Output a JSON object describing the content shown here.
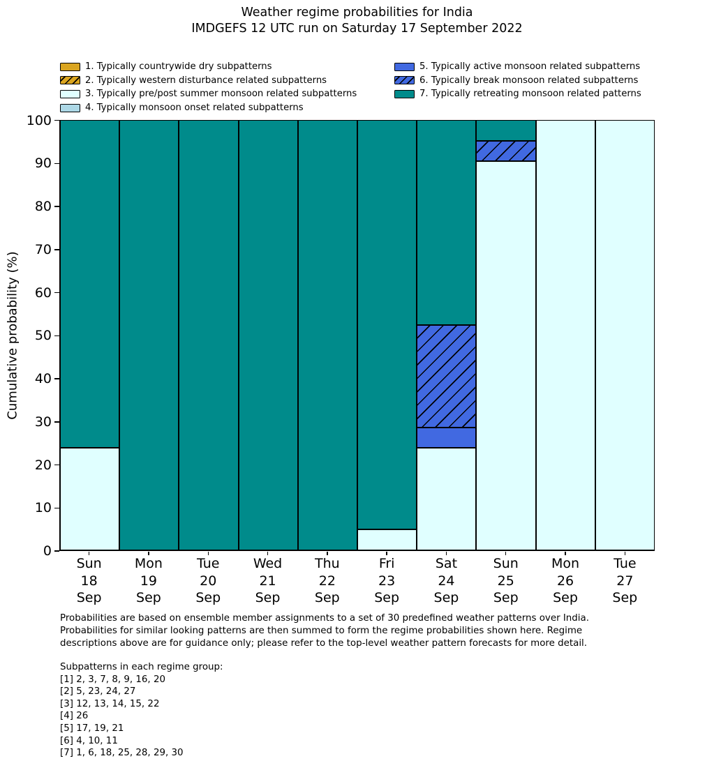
{
  "title": {
    "line1": "Weather regime probabilities for India",
    "line2": "IMDGEFS 12 UTC run on Saturday 17 September 2022"
  },
  "legend": {
    "columns": [
      [
        {
          "label": "1. Typically countrywide dry subpatterns",
          "color": "#DAA520",
          "hatch": false
        },
        {
          "label": "2. Typically western disturbance related subpatterns",
          "color": "#DAA520",
          "hatch": true
        },
        {
          "label": "3. Typically pre/post summer monsoon related subpatterns",
          "color": "#E0FFFF",
          "hatch": false
        },
        {
          "label": "4. Typically monsoon onset related subpatterns",
          "color": "#ADD8E6",
          "hatch": false
        }
      ],
      [
        {
          "label": "5. Typically active monsoon related subpatterns",
          "color": "#4169E1",
          "hatch": false
        },
        {
          "label": "6. Typically break monsoon related subpatterns",
          "color": "#4169E1",
          "hatch": true
        },
        {
          "label": "7. Typically retreating monsoon related patterns",
          "color": "#008B8B",
          "hatch": false
        }
      ]
    ]
  },
  "chart_data": {
    "type": "bar",
    "stacked": true,
    "title": "Weather regime probabilities for India — IMDGEFS 12 UTC run on Saturday 17 September 2022",
    "ylabel": "Cumulative probability (%)",
    "xlabel": "",
    "ylim": [
      0,
      100
    ],
    "yticks": [
      0,
      10,
      20,
      30,
      40,
      50,
      60,
      70,
      80,
      90,
      100
    ],
    "grid": false,
    "legend_position": "top, two columns",
    "categories": [
      [
        "Sun",
        "18",
        "Sep"
      ],
      [
        "Mon",
        "19",
        "Sep"
      ],
      [
        "Tue",
        "20",
        "Sep"
      ],
      [
        "Wed",
        "21",
        "Sep"
      ],
      [
        "Thu",
        "22",
        "Sep"
      ],
      [
        "Fri",
        "23",
        "Sep"
      ],
      [
        "Sat",
        "24",
        "Sep"
      ],
      [
        "Sun",
        "25",
        "Sep"
      ],
      [
        "Mon",
        "26",
        "Sep"
      ],
      [
        "Tue",
        "27",
        "Sep"
      ]
    ],
    "series": [
      {
        "name": "3. Typically pre/post summer monsoon related subpatterns",
        "regime": 3,
        "color": "#E0FFFF",
        "hatch": false,
        "values": [
          23.8,
          0,
          0,
          0,
          0,
          4.8,
          23.8,
          90.5,
          100,
          100
        ]
      },
      {
        "name": "5. Typically active monsoon related subpatterns",
        "regime": 5,
        "color": "#4169E1",
        "hatch": false,
        "values": [
          0,
          0,
          0,
          0,
          0,
          0,
          4.8,
          0,
          0,
          0
        ]
      },
      {
        "name": "6. Typically break monsoon related subpatterns",
        "regime": 6,
        "color": "#4169E1",
        "hatch": true,
        "values": [
          0,
          0,
          0,
          0,
          0,
          0,
          23.8,
          4.8,
          0,
          0
        ]
      },
      {
        "name": "7. Typically retreating monsoon related patterns",
        "regime": 7,
        "color": "#008B8B",
        "hatch": false,
        "values": [
          76.2,
          100,
          100,
          100,
          100,
          95.2,
          47.6,
          4.8,
          0,
          0
        ]
      }
    ]
  },
  "colors": {
    "regime1_gold": "#DAA520",
    "regime3_lightcyan": "#E0FFFF",
    "regime4_lightblue": "#ADD8E6",
    "regime5_royalblue": "#4169E1",
    "regime7_teal": "#008B8B",
    "bar_edge": "#000000",
    "background": "#FFFFFF"
  },
  "footnotes": {
    "paragraph_lines": [
      "Probabilities are based on ensemble member assignments to a set of 30 predefined weather patterns over India.",
      "Probabilities for similar looking patterns are then summed to form the regime probabilities shown here. Regime",
      "descriptions above are for guidance only; please refer to the top-level weather pattern forecasts for more detail."
    ],
    "subpatterns_title": "Subpatterns in each regime group:",
    "subpatterns": [
      "[1] 2, 3, 7, 8, 9, 16, 20",
      "[2] 5, 23, 24, 27",
      "[3] 12, 13, 14, 15, 22",
      "[4] 26",
      "[5] 17, 19, 21",
      "[6] 4, 10, 11",
      "[7] 1, 6, 18, 25, 28, 29, 30"
    ]
  }
}
